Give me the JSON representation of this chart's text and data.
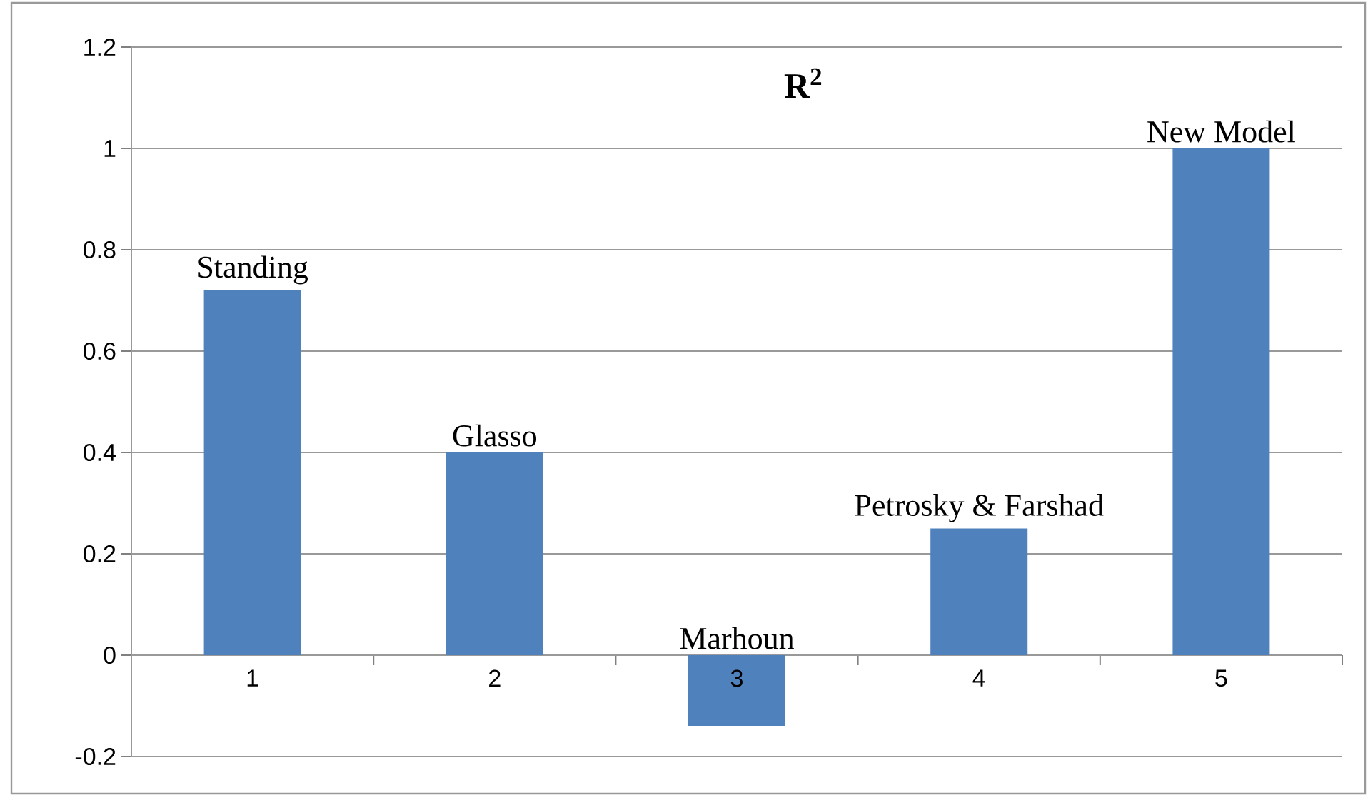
{
  "chart_data": {
    "type": "bar",
    "title": "R$^{2}$",
    "categories": [
      "1",
      "2",
      "3",
      "4",
      "5"
    ],
    "values": [
      0.72,
      0.4,
      -0.14,
      0.25,
      1.0
    ],
    "color": "#4f81bd",
    "ylim": [
      -0.2,
      1.2
    ],
    "yticks": [
      -0.2,
      0,
      0.2,
      0.4,
      0.6,
      0.8,
      1,
      1.2
    ],
    "grid": "y",
    "annotations": [
      {
        "text": "Standing",
        "x": "1",
        "y": 0.72
      },
      {
        "text": "Glasso",
        "x": "2",
        "y": 0.4
      },
      {
        "text": "Marhoun",
        "x": "3",
        "y": -0.14
      },
      {
        "text": "Petrosky & Farshad",
        "x": "4",
        "y": 0.25
      },
      {
        "text": "New Model",
        "x": "5",
        "y": 1.0
      }
    ]
  }
}
